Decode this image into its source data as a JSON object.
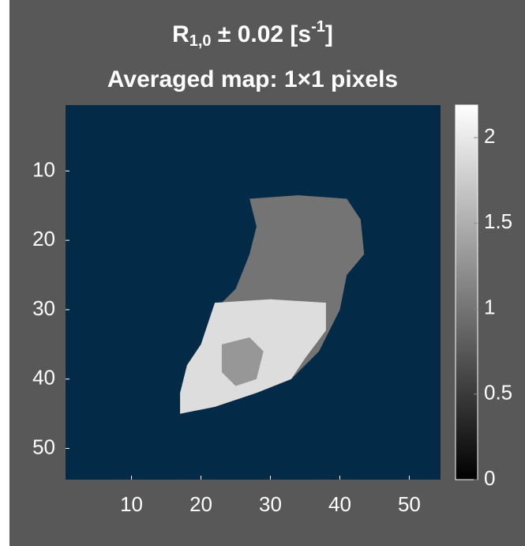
{
  "chart_data": {
    "type": "image",
    "title": {
      "base": "R",
      "sub": "1,0",
      "mid": " ± 0.02 [s",
      "sup": "-1",
      "end": "]"
    },
    "subtitle": "Averaged map: 1×1 pixels",
    "xlim": [
      0.5,
      54.5
    ],
    "ylim": [
      0.5,
      54.5
    ],
    "y_reversed": true,
    "xticks": [
      10,
      20,
      30,
      40,
      50
    ],
    "yticks": [
      10,
      20,
      30,
      40,
      50
    ],
    "background_color": "#032b48",
    "clim": [
      0,
      2.19
    ],
    "cticks": [
      0,
      0.5,
      1,
      1.5,
      2
    ],
    "regions": [
      {
        "value": 1.0,
        "outline": [
          [
            27,
            14
          ],
          [
            34,
            13.5
          ],
          [
            41,
            14
          ],
          [
            43,
            17
          ],
          [
            43.5,
            22
          ],
          [
            41,
            25
          ],
          [
            40,
            30
          ],
          [
            37,
            36
          ],
          [
            33,
            40
          ],
          [
            28,
            42
          ],
          [
            22,
            44
          ],
          [
            17,
            45
          ],
          [
            17,
            42
          ],
          [
            18,
            38
          ],
          [
            20,
            35
          ],
          [
            22,
            30
          ],
          [
            25,
            27
          ],
          [
            27,
            22
          ],
          [
            28,
            18
          ]
        ]
      },
      {
        "value": 1.9,
        "outline": [
          [
            22,
            29
          ],
          [
            30,
            28.5
          ],
          [
            38,
            29
          ],
          [
            38,
            33
          ],
          [
            35,
            37
          ],
          [
            33,
            40
          ],
          [
            28,
            42
          ],
          [
            22,
            44
          ],
          [
            17,
            45
          ],
          [
            17,
            42
          ],
          [
            18,
            38
          ],
          [
            20,
            35
          ]
        ]
      },
      {
        "value": 1.3,
        "outline": [
          [
            23,
            35
          ],
          [
            27,
            34
          ],
          [
            29,
            36
          ],
          [
            28,
            40
          ],
          [
            25,
            41
          ],
          [
            23,
            39
          ]
        ]
      }
    ]
  }
}
